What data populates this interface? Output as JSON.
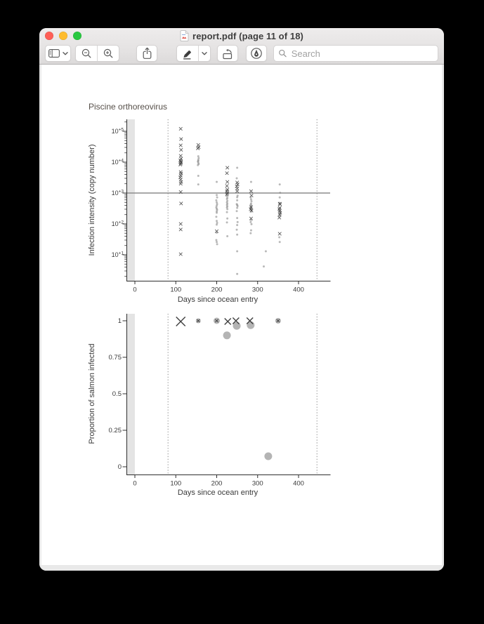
{
  "window": {
    "title": "report.pdf (page 11 of 18)",
    "traffic_lights": {
      "close": "#ff5f57",
      "minimize": "#febc2e",
      "zoom": "#28c840"
    },
    "toolbar": {
      "icons": [
        "sidebar-icon",
        "chevron-down-icon",
        "zoom-out-icon",
        "zoom-in-icon",
        "share-icon",
        "highlighter-icon",
        "chevron-down-icon",
        "rotate-left-icon",
        "markup-pen-icon",
        "search-icon"
      ],
      "search": {
        "placeholder": "Search",
        "value": ""
      }
    }
  },
  "page": {
    "plot_title": "Piscine orthoreovirus",
    "plot_title_color": "#57504a"
  },
  "style": {
    "axis": "#2f2f2f",
    "text": "#3a3a3a",
    "band": "#e4e4e4",
    "dotted": "#8a8a8a",
    "hline": "#8c8c8c",
    "x_marker": "#3f3f3f",
    "dot_marker": "#8a8a8a",
    "circle_fill": "#b4b4b4"
  },
  "chart_data": [
    {
      "type": "scatter",
      "title": "Piscine orthoreovirus",
      "x_axis": {
        "label": "Days since ocean entry",
        "ticks": [
          0,
          100,
          200,
          300,
          400
        ],
        "range": [
          -21,
          478
        ]
      },
      "y_axis": {
        "label": "Infection intensity (copy number)",
        "scale": "log10",
        "ticks": [
          {
            "v": 10,
            "label": "10",
            "sup": "+1"
          },
          {
            "v": 100,
            "label": "10",
            "sup": "+2"
          },
          {
            "v": 1000,
            "label": "10",
            "sup": "+3"
          },
          {
            "v": 10000,
            "label": "10",
            "sup": "+4"
          },
          {
            "v": 100000,
            "label": "10",
            "sup": "+5"
          }
        ],
        "range_log10": [
          0.16,
          5.35
        ]
      },
      "hline_y": 1000,
      "dotted_x": [
        81,
        445
      ],
      "band_x": [
        -21,
        0
      ],
      "series": [
        {
          "name": "low-intensity-dot",
          "marker": "dot",
          "points": [
            [
              155,
              15500
            ],
            [
              156,
              13500
            ],
            [
              155,
              12000
            ],
            [
              154,
              10500
            ],
            [
              155,
              11000
            ],
            [
              155,
              9500
            ],
            [
              156,
              8700
            ],
            [
              154,
              8000
            ],
            [
              155,
              3600
            ],
            [
              155,
              1900
            ],
            [
              200,
              2300
            ],
            [
              200,
              860
            ],
            [
              201,
              720
            ],
            [
              199,
              580
            ],
            [
              200,
              500
            ],
            [
              201,
              440
            ],
            [
              200,
              390
            ],
            [
              199,
              345
            ],
            [
              200,
              310
            ],
            [
              201,
              285
            ],
            [
              200,
              255
            ],
            [
              200,
              230
            ],
            [
              199,
              170
            ],
            [
              200,
              125
            ],
            [
              201,
              108
            ],
            [
              200,
              95
            ],
            [
              200,
              52
            ],
            [
              199,
              30
            ],
            [
              200,
              26
            ],
            [
              201,
              22
            ],
            [
              225,
              800
            ],
            [
              226,
              700
            ],
            [
              225,
              640
            ],
            [
              226,
              560
            ],
            [
              225,
              500
            ],
            [
              226,
              450
            ],
            [
              225,
              410
            ],
            [
              226,
              370
            ],
            [
              225,
              340
            ],
            [
              226,
              300
            ],
            [
              225,
              240
            ],
            [
              226,
              150
            ],
            [
              225,
              112
            ],
            [
              226,
              40
            ],
            [
              250,
              6600
            ],
            [
              249,
              3000
            ],
            [
              251,
              820
            ],
            [
              250,
              730
            ],
            [
              250,
              580
            ],
            [
              249,
              440
            ],
            [
              250,
              410
            ],
            [
              251,
              380
            ],
            [
              250,
              330
            ],
            [
              249,
              260
            ],
            [
              250,
              155
            ],
            [
              251,
              115
            ],
            [
              250,
              92
            ],
            [
              249,
              65
            ],
            [
              250,
              45
            ],
            [
              250,
              13
            ],
            [
              250,
              2.4
            ],
            [
              284,
              2300
            ],
            [
              283,
              720
            ],
            [
              284,
              620
            ],
            [
              285,
              540
            ],
            [
              284,
              460
            ],
            [
              283,
              420
            ],
            [
              285,
              390
            ],
            [
              284,
              360
            ],
            [
              283,
              330
            ],
            [
              284,
              310
            ],
            [
              285,
              280
            ],
            [
              284,
              250
            ],
            [
              284,
              135
            ],
            [
              283,
              115
            ],
            [
              285,
              98
            ],
            [
              284,
              62
            ],
            [
              283,
              50
            ],
            [
              320,
              13
            ],
            [
              315,
              4.2
            ],
            [
              354,
              1900
            ],
            [
              355,
              1020
            ],
            [
              354,
              720
            ],
            [
              353,
              480
            ],
            [
              354,
              255
            ],
            [
              355,
              215
            ],
            [
              354,
              185
            ],
            [
              353,
              37
            ],
            [
              354,
              26
            ]
          ]
        },
        {
          "name": "x-marker",
          "marker": "x",
          "points": [
            [
              112,
              120000
            ],
            [
              113,
              56000
            ],
            [
              112,
              35000
            ],
            [
              113,
              25000
            ],
            [
              112,
              16000
            ],
            [
              113,
              13000
            ],
            [
              111,
              11500
            ],
            [
              112,
              10500
            ],
            [
              113,
              9800
            ],
            [
              112,
              9000
            ],
            [
              111,
              8300
            ],
            [
              112,
              4800
            ],
            [
              113,
              4300
            ],
            [
              112,
              3700
            ],
            [
              111,
              3200
            ],
            [
              112,
              2700
            ],
            [
              113,
              2300
            ],
            [
              112,
              2000
            ],
            [
              112,
              1080
            ],
            [
              113,
              460
            ],
            [
              112,
              100
            ],
            [
              112,
              66
            ],
            [
              112,
              10.5
            ],
            [
              155,
              36000
            ],
            [
              156,
              30500
            ],
            [
              154,
              28000
            ],
            [
              200,
              58
            ],
            [
              226,
              6600
            ],
            [
              225,
              4400
            ],
            [
              226,
              2300
            ],
            [
              225,
              1700
            ],
            [
              226,
              1300
            ],
            [
              225,
              1150
            ],
            [
              226,
              1000
            ],
            [
              225,
              900
            ],
            [
              250,
              2200
            ],
            [
              251,
              1900
            ],
            [
              249,
              1650
            ],
            [
              250,
              1400
            ],
            [
              250,
              1150
            ],
            [
              284,
              1150
            ],
            [
              285,
              830
            ],
            [
              284,
              350
            ],
            [
              283,
              300
            ],
            [
              285,
              270
            ],
            [
              284,
              150
            ],
            [
              354,
              450
            ],
            [
              355,
              430
            ],
            [
              354,
              330
            ],
            [
              353,
              300
            ],
            [
              354,
              265
            ],
            [
              355,
              230
            ],
            [
              354,
              200
            ],
            [
              353,
              160
            ],
            [
              354,
              48
            ]
          ]
        }
      ]
    },
    {
      "type": "scatter",
      "title": "",
      "x_axis": {
        "label": "Days since ocean entry",
        "ticks": [
          0,
          100,
          200,
          300,
          400
        ],
        "range": [
          -21,
          478
        ]
      },
      "y_axis": {
        "label": "Proportion of salmon infected",
        "ticks": [
          {
            "v": 0,
            "label": "0"
          },
          {
            "v": 0.25,
            "label": "0.25"
          },
          {
            "v": 0.5,
            "label": "0.5"
          },
          {
            "v": 0.75,
            "label": "0.75"
          },
          {
            "v": 1,
            "label": "1"
          }
        ],
        "range": [
          -0.04,
          1.07
        ]
      },
      "dotted_x": [
        81,
        445
      ],
      "band_x": [
        -21,
        0
      ],
      "points": [
        {
          "x": 112,
          "y": 0.995,
          "marker": "x",
          "size": 13
        },
        {
          "x": 155,
          "y": 1.0,
          "marker": "circle-x",
          "r": 3.5
        },
        {
          "x": 200,
          "y": 1.0,
          "marker": "circle-x",
          "r": 4.5
        },
        {
          "x": 227,
          "y": 0.995,
          "marker": "x",
          "size": 9
        },
        {
          "x": 225,
          "y": 0.9,
          "marker": "circle",
          "r": 5.5
        },
        {
          "x": 247,
          "y": 1.0,
          "marker": "x",
          "size": 9
        },
        {
          "x": 249,
          "y": 0.965,
          "marker": "circle",
          "r": 5.5
        },
        {
          "x": 281,
          "y": 1.0,
          "marker": "x",
          "size": 9
        },
        {
          "x": 283,
          "y": 0.97,
          "marker": "circle",
          "r": 5.5
        },
        {
          "x": 350,
          "y": 1.0,
          "marker": "circle-x",
          "r": 4
        },
        {
          "x": 326,
          "y": 0.072,
          "marker": "circle",
          "r": 5.5
        }
      ]
    }
  ]
}
